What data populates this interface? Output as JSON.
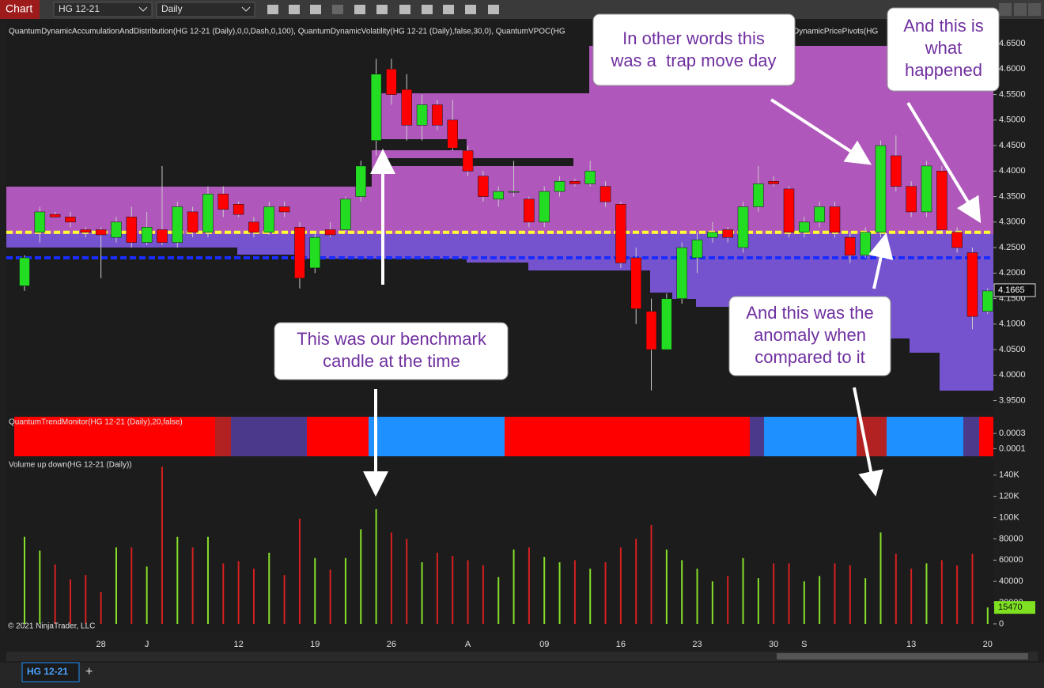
{
  "toolbar": {
    "app": "Chart",
    "instrument": "HG 12-21",
    "period": "Daily"
  },
  "tabs": {
    "active": "HG 12-21",
    "add": "+"
  },
  "copyright": "© 2021 NinjaTrader, LLC",
  "annotations": [
    {
      "lines": [
        "In other words this",
        "was a  trap move day"
      ]
    },
    {
      "lines": [
        "And this is",
        "what",
        "happened"
      ]
    },
    {
      "lines": [
        "This was our benchmark",
        "candle at the time"
      ]
    },
    {
      "lines": [
        "And this was the",
        "anomaly when",
        "compared to it"
      ]
    }
  ],
  "chart_data": [
    {
      "type": "candlestick",
      "title": "QuantumDynamicAccumulationAndDistribution(HG 12-21 (Daily),0,0,Dash,0,100), QuantumDynamicVolatility(HG 12-21 (Daily),false,30,0), QuantumVPOC(HG",
      "subtitle": "DynamicPricePivots(HG",
      "x": [
        null,
        null,
        null,
        null,
        null,
        "28",
        null,
        null,
        "J",
        null,
        null,
        null,
        null,
        null,
        "12",
        null,
        null,
        null,
        null,
        "19",
        null,
        null,
        null,
        null,
        "26",
        null,
        null,
        null,
        null,
        "A",
        null,
        null,
        null,
        null,
        "09",
        null,
        null,
        null,
        null,
        "16",
        null,
        null,
        null,
        null,
        "23",
        null,
        null,
        null,
        null,
        "30",
        null,
        "S",
        null,
        null,
        null,
        null,
        null,
        null,
        "13",
        null,
        null,
        null,
        null,
        "20"
      ],
      "open": [
        4.175,
        4.28,
        4.315,
        4.31,
        4.285,
        4.285,
        4.27,
        4.31,
        4.26,
        4.285,
        4.26,
        4.32,
        4.28,
        4.355,
        4.335,
        4.3,
        4.28,
        4.33,
        4.29,
        4.21,
        4.285,
        4.285,
        4.35,
        4.46,
        4.6,
        4.56,
        4.49,
        4.53,
        4.5,
        4.44,
        4.39,
        4.345,
        4.36,
        4.345,
        4.3,
        4.36,
        4.38,
        4.375,
        4.37,
        4.335,
        4.23,
        4.125,
        4.05,
        4.15,
        4.23,
        4.27,
        4.285,
        4.25,
        4.33,
        4.38,
        4.365,
        4.28,
        4.3,
        4.33,
        4.27,
        4.235,
        4.28,
        4.43,
        4.37,
        4.32,
        4.4,
        4.28,
        4.24,
        4.125
      ],
      "high": [
        4.235,
        4.33,
        4.32,
        4.32,
        4.29,
        4.29,
        4.31,
        4.33,
        4.32,
        4.41,
        4.34,
        4.33,
        4.37,
        4.37,
        4.34,
        4.31,
        4.34,
        4.34,
        4.3,
        4.28,
        4.3,
        4.35,
        4.42,
        4.62,
        4.62,
        4.59,
        4.55,
        4.54,
        4.54,
        4.45,
        4.4,
        4.37,
        4.42,
        4.35,
        4.37,
        4.39,
        4.385,
        4.42,
        4.38,
        4.34,
        4.25,
        4.15,
        4.16,
        4.26,
        4.28,
        4.3,
        4.29,
        4.34,
        4.41,
        4.39,
        4.37,
        4.31,
        4.34,
        4.34,
        4.28,
        4.29,
        4.46,
        4.47,
        4.38,
        4.42,
        4.41,
        4.29,
        4.25,
        4.17
      ],
      "low": [
        4.165,
        4.26,
        4.31,
        4.29,
        4.27,
        4.19,
        4.26,
        4.25,
        4.255,
        4.255,
        4.25,
        4.27,
        4.27,
        4.31,
        4.31,
        4.27,
        4.275,
        4.31,
        4.17,
        4.2,
        4.27,
        4.28,
        4.34,
        4.43,
        4.53,
        4.46,
        4.46,
        4.48,
        4.44,
        4.39,
        4.34,
        4.33,
        4.35,
        4.29,
        4.29,
        4.35,
        4.37,
        4.37,
        4.33,
        4.21,
        4.1,
        3.97,
        4.05,
        4.14,
        4.2,
        4.26,
        4.26,
        4.24,
        4.32,
        4.37,
        4.27,
        4.27,
        4.29,
        4.27,
        4.22,
        4.23,
        4.27,
        4.36,
        4.31,
        4.31,
        4.28,
        4.24,
        4.09,
        4.12
      ],
      "close": [
        4.23,
        4.32,
        4.31,
        4.3,
        4.28,
        4.275,
        4.3,
        4.26,
        4.29,
        4.26,
        4.33,
        4.28,
        4.355,
        4.325,
        4.315,
        4.28,
        4.33,
        4.32,
        4.19,
        4.27,
        4.275,
        4.345,
        4.41,
        4.59,
        4.55,
        4.49,
        4.53,
        4.49,
        4.445,
        4.4,
        4.35,
        4.36,
        4.36,
        4.3,
        4.36,
        4.38,
        4.375,
        4.4,
        4.34,
        4.22,
        4.13,
        4.05,
        4.15,
        4.25,
        4.265,
        4.28,
        4.27,
        4.33,
        4.375,
        4.375,
        4.28,
        4.3,
        4.33,
        4.28,
        4.235,
        4.28,
        4.45,
        4.37,
        4.32,
        4.41,
        4.285,
        4.25,
        4.115,
        4.165
      ],
      "up_color": "#22dd22",
      "down_color": "#ff0000",
      "levels": [
        {
          "value": 4.28,
          "color": "#ffff33"
        },
        {
          "value": 4.23,
          "color": "#1a2cff"
        }
      ],
      "ylim": [
        3.923,
        4.692
      ],
      "yticks": [
        {
          "value": 3.95,
          "label": "3.9500"
        },
        {
          "value": 4.0,
          "label": "4.0000"
        },
        {
          "value": 4.05,
          "label": "4.0500"
        },
        {
          "value": 4.1,
          "label": "4.1000"
        },
        {
          "value": 4.15,
          "label": "4.1500"
        },
        {
          "value": 4.2,
          "label": "4.2000"
        },
        {
          "value": 4.25,
          "label": "4.2500"
        },
        {
          "value": 4.3,
          "label": "4.3000"
        },
        {
          "value": 4.35,
          "label": "4.3500"
        },
        {
          "value": 4.4,
          "label": "4.4000"
        },
        {
          "value": 4.45,
          "label": "4.4500"
        },
        {
          "value": 4.5,
          "label": "4.5000"
        },
        {
          "value": 4.55,
          "label": "4.5500"
        },
        {
          "value": 4.6,
          "label": "4.6000"
        },
        {
          "value": 4.65,
          "label": "4.6500"
        }
      ],
      "last_value": {
        "value": 4.1665,
        "label": "4.1665"
      }
    },
    {
      "type": "band",
      "title": "QuantumTrendMonitor(HG 12-21 (Daily),20,false)",
      "ylim": [
        0,
        0.00052
      ],
      "yticks": [
        0.0003,
        0.0001
      ]
    },
    {
      "type": "bar",
      "title": "Volume up down(HG 12-21 (Daily))",
      "values": [
        82000,
        69000,
        56000,
        42000,
        46000,
        30000,
        72000,
        72000,
        54000,
        148000,
        82000,
        72000,
        82000,
        57000,
        59000,
        52000,
        67000,
        46000,
        99000,
        62000,
        51000,
        62000,
        89000,
        108000,
        86000,
        80000,
        58000,
        67000,
        64000,
        60000,
        55000,
        44000,
        70000,
        72000,
        63000,
        58000,
        60000,
        52000,
        58000,
        72000,
        80000,
        93000,
        70000,
        60000,
        52000,
        40000,
        45000,
        62000,
        43000,
        57000,
        57000,
        40000,
        45000,
        57000,
        55000,
        43000,
        86000,
        66000,
        52000,
        57000,
        60000,
        55000,
        66000,
        15470
      ],
      "ylim": [
        -6000,
        154000
      ],
      "yticks": [
        0,
        {
          "value": 20000,
          "label": "20000"
        },
        {
          "value": 40000,
          "label": "40000"
        },
        {
          "value": 60000,
          "label": "60000"
        },
        {
          "value": 80000,
          "label": "80000"
        },
        {
          "value": 100000,
          "label": "100K"
        },
        {
          "value": 120000,
          "label": "120K"
        },
        {
          "value": 140000,
          "label": "140K"
        }
      ],
      "last_value": 15470
    }
  ]
}
